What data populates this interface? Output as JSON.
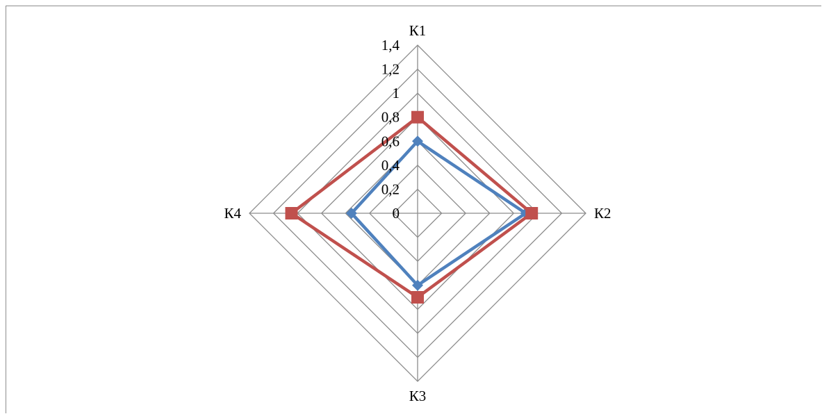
{
  "chart_data": {
    "type": "radar",
    "categories": [
      "К1",
      "К2",
      "К3",
      "К4"
    ],
    "series": [
      {
        "values": [
          0.6,
          0.9,
          0.6,
          0.55
        ],
        "color": "#4f81bd",
        "marker": "diamond"
      },
      {
        "values": [
          0.8,
          0.95,
          0.7,
          1.05
        ],
        "color": "#c0504d",
        "marker": "square"
      }
    ],
    "rlim": [
      0,
      1.4
    ],
    "ticks": [
      "0",
      "0,2",
      "0,4",
      "0,6",
      "0,8",
      "1",
      "1,2",
      "1,4"
    ],
    "tick_values": [
      0,
      0.2,
      0.4,
      0.6,
      0.8,
      1.0,
      1.2,
      1.4
    ],
    "grid": true,
    "grid_color": "#8c8c8c"
  }
}
